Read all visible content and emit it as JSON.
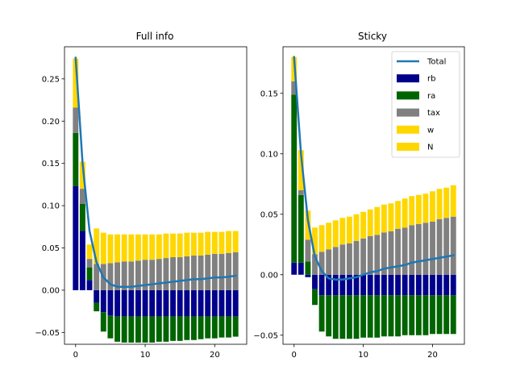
{
  "colors": {
    "rb": "#00008b",
    "ra": "#006400",
    "tax": "#808080",
    "w": "#ffd700",
    "N": "#ffd700",
    "Total": "#1f77b4"
  },
  "chart_data": [
    {
      "type": "bar",
      "title": "Full info",
      "xlabel": "",
      "ylabel": "",
      "stacked": true,
      "xlim": [
        -1.6,
        24.6
      ],
      "ylim": [
        -0.064,
        0.288
      ],
      "xticks": [
        0,
        10,
        20
      ],
      "xtick_labels": [
        "0",
        "10",
        "20"
      ],
      "yticks": [
        -0.05,
        0.0,
        0.05,
        0.1,
        0.15,
        0.2,
        0.25
      ],
      "ytick_labels": [
        "−0.05",
        "0.00",
        "0.05",
        "0.10",
        "0.15",
        "0.20",
        "0.25"
      ],
      "x": [
        0,
        1,
        2,
        3,
        4,
        5,
        6,
        7,
        8,
        9,
        10,
        11,
        12,
        13,
        14,
        15,
        16,
        17,
        18,
        19,
        20,
        21,
        22,
        23
      ],
      "series": [
        {
          "name": "rb",
          "kind": "bar",
          "values": [
            0.123,
            0.07,
            0.012,
            -0.015,
            -0.026,
            -0.03,
            -0.031,
            -0.031,
            -0.031,
            -0.031,
            -0.031,
            -0.031,
            -0.031,
            -0.031,
            -0.031,
            -0.031,
            -0.031,
            -0.031,
            -0.031,
            -0.031,
            -0.031,
            -0.031,
            -0.031,
            -0.031
          ]
        },
        {
          "name": "ra",
          "kind": "bar",
          "values": [
            0.063,
            0.032,
            0.015,
            -0.01,
            -0.023,
            -0.027,
            -0.03,
            -0.031,
            -0.031,
            -0.031,
            -0.031,
            -0.031,
            -0.03,
            -0.03,
            -0.029,
            -0.029,
            -0.028,
            -0.028,
            -0.027,
            -0.026,
            -0.026,
            -0.025,
            -0.025,
            -0.024
          ]
        },
        {
          "name": "tax",
          "kind": "bar",
          "values": [
            0.03,
            0.018,
            0.01,
            0.031,
            0.031,
            0.032,
            0.033,
            0.034,
            0.034,
            0.035,
            0.036,
            0.036,
            0.037,
            0.038,
            0.039,
            0.039,
            0.04,
            0.041,
            0.041,
            0.042,
            0.043,
            0.043,
            0.044,
            0.045
          ]
        },
        {
          "name": "w",
          "kind": "bar",
          "values": [
            0.058,
            0.032,
            0.017,
            0.042,
            0.037,
            0.034,
            0.033,
            0.032,
            0.032,
            0.031,
            0.03,
            0.03,
            0.029,
            0.029,
            0.028,
            0.028,
            0.028,
            0.027,
            0.027,
            0.027,
            0.026,
            0.026,
            0.026,
            0.025
          ]
        },
        {
          "name": "N",
          "kind": "bar",
          "values": [
            0.0,
            0.0,
            0.0,
            0.0,
            0.0,
            0.0,
            0.0,
            0.0,
            0.0,
            0.0,
            0.0,
            0.0,
            0.0,
            0.0,
            0.0,
            0.0,
            0.0,
            0.0,
            0.0,
            0.0,
            0.0,
            0.0,
            0.0,
            0.0
          ]
        },
        {
          "name": "Total",
          "kind": "line",
          "values": [
            0.275,
            0.15,
            0.07,
            0.033,
            0.015,
            0.007,
            0.004,
            0.004,
            0.004,
            0.005,
            0.006,
            0.007,
            0.008,
            0.009,
            0.01,
            0.011,
            0.012,
            0.013,
            0.013,
            0.014,
            0.015,
            0.015,
            0.016,
            0.017
          ]
        }
      ]
    },
    {
      "type": "bar",
      "title": "Sticky",
      "xlabel": "",
      "ylabel": "",
      "stacked": true,
      "xlim": [
        -1.6,
        24.6
      ],
      "ylim": [
        -0.0575,
        0.1885
      ],
      "xticks": [
        0,
        10,
        20
      ],
      "xtick_labels": [
        "0",
        "10",
        "20"
      ],
      "yticks": [
        -0.05,
        0.0,
        0.05,
        0.1,
        0.15
      ],
      "ytick_labels": [
        "−0.05",
        "0.00",
        "0.05",
        "0.10",
        "0.15"
      ],
      "x": [
        0,
        1,
        2,
        3,
        4,
        5,
        6,
        7,
        8,
        9,
        10,
        11,
        12,
        13,
        14,
        15,
        16,
        17,
        18,
        19,
        20,
        21,
        22,
        23
      ],
      "legend": {
        "location": "upper right",
        "entries": [
          "Total",
          "rb",
          "ra",
          "tax",
          "w",
          "N"
        ]
      },
      "series": [
        {
          "name": "rb",
          "kind": "bar",
          "values": [
            0.01,
            0.01,
            -0.002,
            -0.012,
            -0.017,
            -0.017,
            -0.017,
            -0.017,
            -0.017,
            -0.017,
            -0.017,
            -0.017,
            -0.017,
            -0.017,
            -0.017,
            -0.017,
            -0.017,
            -0.017,
            -0.017,
            -0.017,
            -0.017,
            -0.017,
            -0.017,
            -0.017
          ]
        },
        {
          "name": "ra",
          "kind": "bar",
          "values": [
            0.139,
            0.056,
            0.011,
            -0.013,
            -0.03,
            -0.034,
            -0.036,
            -0.036,
            -0.036,
            -0.036,
            -0.035,
            -0.035,
            -0.035,
            -0.034,
            -0.034,
            -0.034,
            -0.033,
            -0.033,
            -0.033,
            -0.033,
            -0.032,
            -0.032,
            -0.032,
            -0.032
          ]
        },
        {
          "name": "tax",
          "kind": "bar",
          "values": [
            0.011,
            0.004,
            0.018,
            0.017,
            0.019,
            0.021,
            0.023,
            0.025,
            0.026,
            0.028,
            0.03,
            0.032,
            0.033,
            0.035,
            0.036,
            0.038,
            0.039,
            0.041,
            0.042,
            0.043,
            0.044,
            0.046,
            0.047,
            0.048
          ]
        },
        {
          "name": "w",
          "kind": "bar",
          "values": [
            0.02,
            0.033,
            0.024,
            0.022,
            0.022,
            0.022,
            0.022,
            0.022,
            0.022,
            0.022,
            0.022,
            0.022,
            0.023,
            0.023,
            0.023,
            0.023,
            0.024,
            0.024,
            0.024,
            0.024,
            0.025,
            0.025,
            0.025,
            0.026
          ]
        },
        {
          "name": "N",
          "kind": "bar",
          "values": [
            0.0,
            0.0,
            0.0,
            0.0,
            0.0,
            0.0,
            0.0,
            0.0,
            0.0,
            0.0,
            0.0,
            0.0,
            0.0,
            0.0,
            0.0,
            0.0,
            0.0,
            0.0,
            0.0,
            0.0,
            0.0,
            0.0,
            0.0,
            0.0
          ]
        },
        {
          "name": "Total",
          "kind": "line",
          "values": [
            0.18,
            0.1,
            0.045,
            0.015,
            0.003,
            -0.003,
            -0.004,
            -0.004,
            -0.003,
            -0.002,
            0.0,
            0.002,
            0.003,
            0.005,
            0.006,
            0.007,
            0.008,
            0.01,
            0.011,
            0.012,
            0.013,
            0.014,
            0.015,
            0.016
          ]
        }
      ]
    }
  ]
}
